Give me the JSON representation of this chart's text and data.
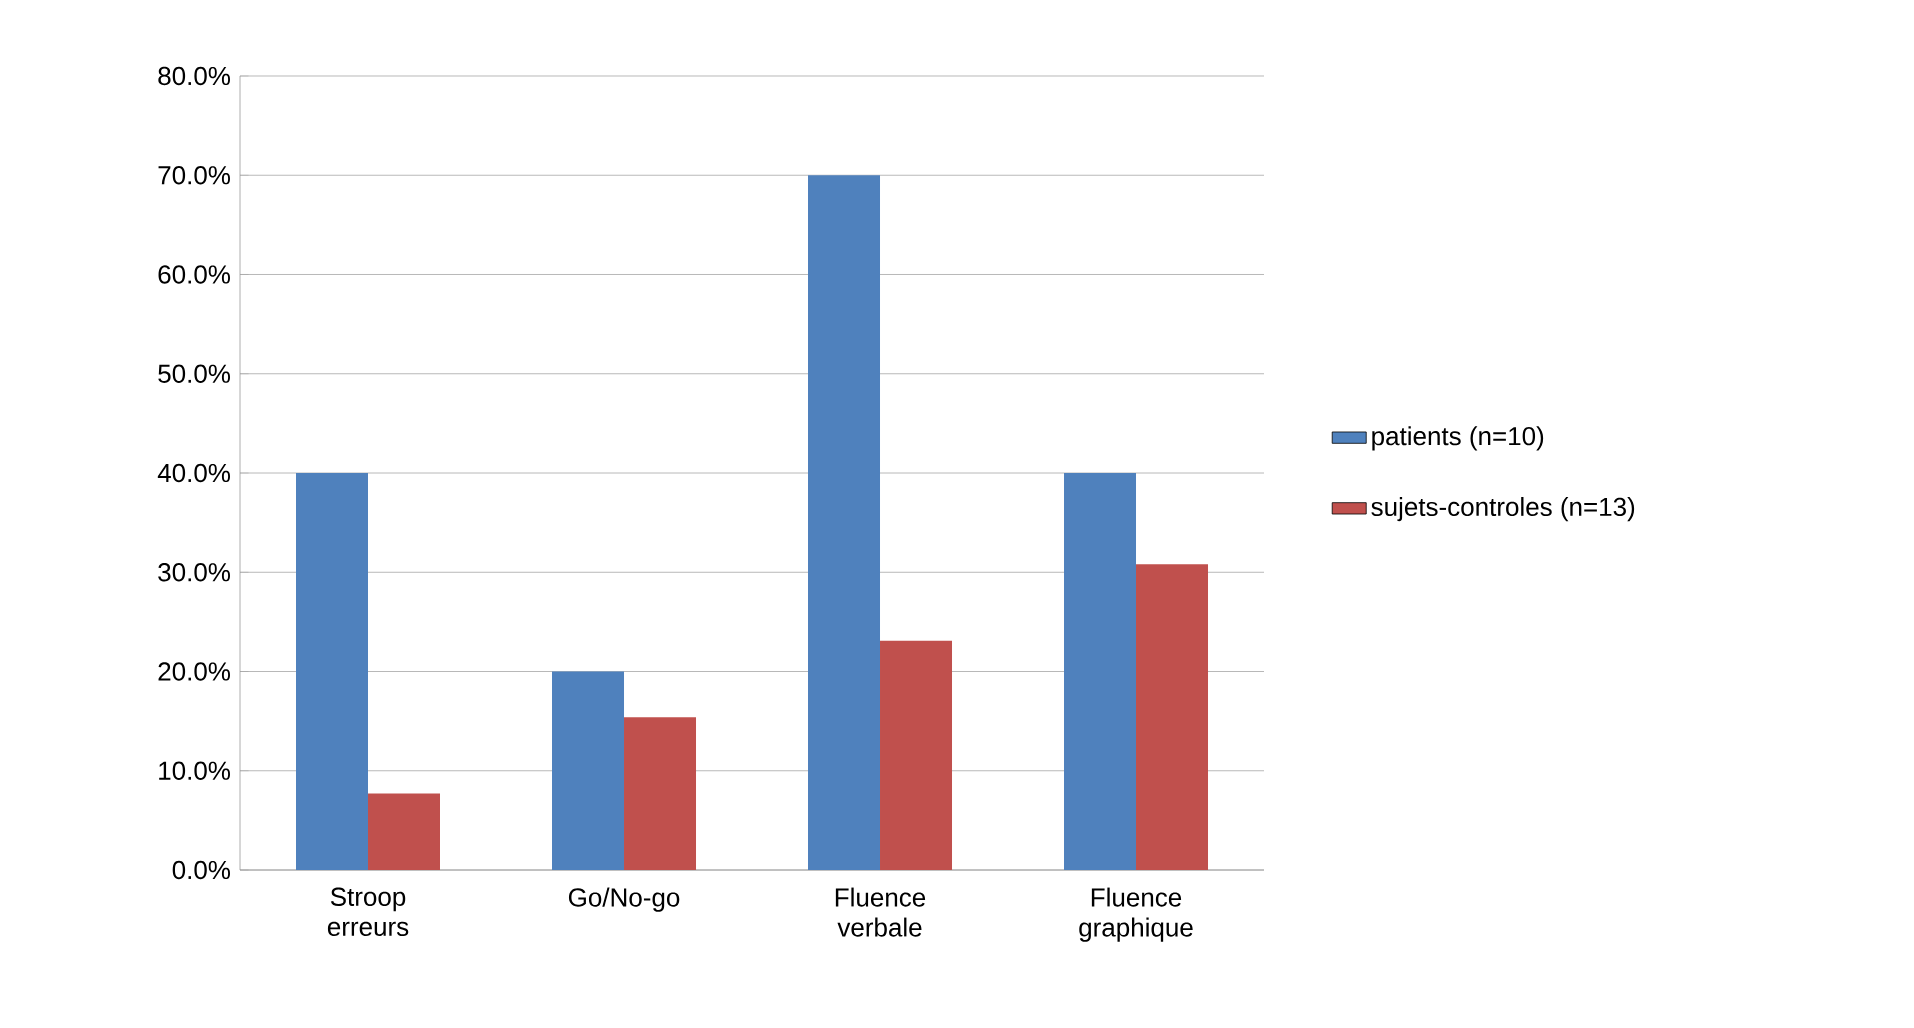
{
  "chart_data": {
    "type": "bar",
    "categories": [
      "Stroop erreurs",
      "Go/No-go",
      "Fluence verbale",
      "Fluence graphique"
    ],
    "series": [
      {
        "name": "patients (n=10)",
        "color": "#4f81bd",
        "values": [
          40,
          20,
          70,
          40
        ]
      },
      {
        "name": "sujets-controles (n=13)",
        "color": "#c0504d",
        "values": [
          7.7,
          15.4,
          23.1,
          30.8
        ]
      }
    ],
    "ylim": [
      0,
      80
    ],
    "yticks": [
      {
        "value": 0,
        "label": "0.0%"
      },
      {
        "value": 10,
        "label": "10.0%"
      },
      {
        "value": 20,
        "label": "20.0%"
      },
      {
        "value": 30,
        "label": "30.0%"
      },
      {
        "value": 40,
        "label": "40.0%"
      },
      {
        "value": 50,
        "label": "50.0%"
      },
      {
        "value": 60,
        "label": "60.0%"
      },
      {
        "value": 70,
        "label": "70.0%"
      },
      {
        "value": 80,
        "label": "80.0%"
      }
    ],
    "grid": "y",
    "legend": "right"
  }
}
